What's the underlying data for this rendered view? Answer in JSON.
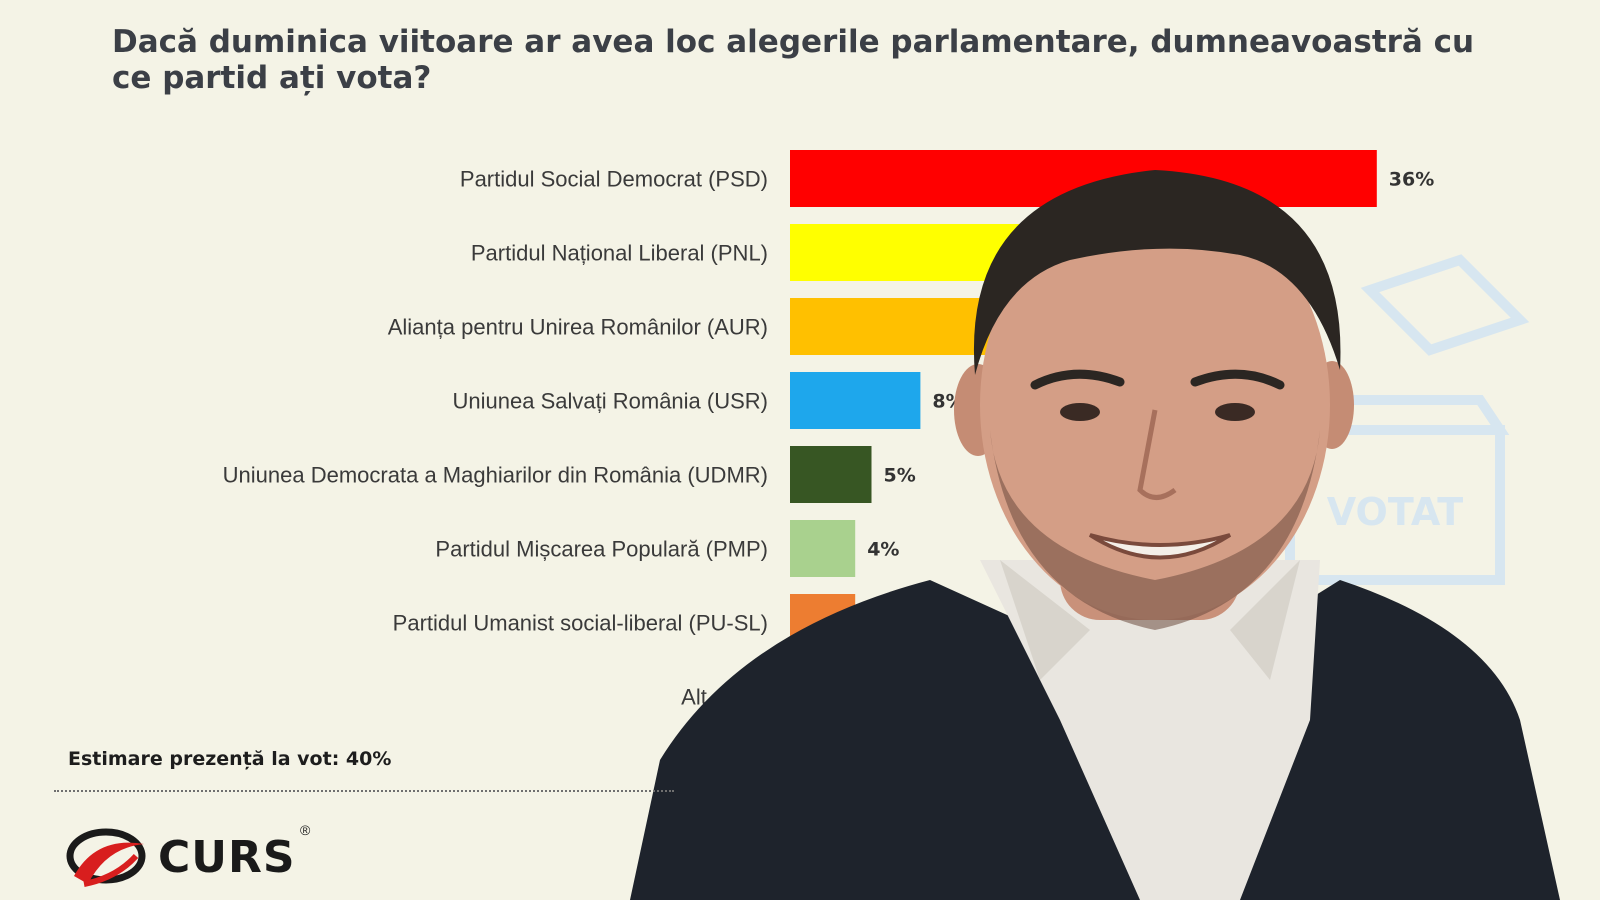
{
  "chart_data": {
    "type": "bar",
    "orientation": "horizontal",
    "title": "Dacă duminica viitoare ar avea loc alegerile parlamentare, dumneavoastră cu ce partid ați vota?",
    "categories": [
      "Partidul Social Democrat (PSD)",
      "Partidul Național Liberal (PNL)",
      "Alianța pentru Unirea Românilor (AUR)",
      "Uniunea Salvați România (USR)",
      "Uniunea Democrata a Maghiarilor din România (UDMR)",
      "Partidul Mișcarea Populară (PMP)",
      "Partidul Umanist social-liberal (PU-SL)",
      "Alt partid"
    ],
    "values": [
      36,
      null,
      null,
      8,
      5,
      4,
      4,
      null
    ],
    "value_labels": [
      "36%",
      "",
      "",
      "8%",
      "5%",
      "4%",
      "4%",
      ""
    ],
    "colors": [
      "#ff0000",
      "#ffff00",
      "#ffc000",
      "#1ea7ec",
      "#375623",
      "#a9d18e",
      "#ed7d31",
      "#8497b0"
    ],
    "unit": "%",
    "xlim": [
      0,
      36
    ],
    "grid": false,
    "legend": "none"
  },
  "footer": {
    "turnout": "Estimare prezență la vot: 40%"
  },
  "logo": {
    "text": "CURS",
    "reg": "®"
  },
  "ballot": {
    "text": "VOTAT"
  }
}
